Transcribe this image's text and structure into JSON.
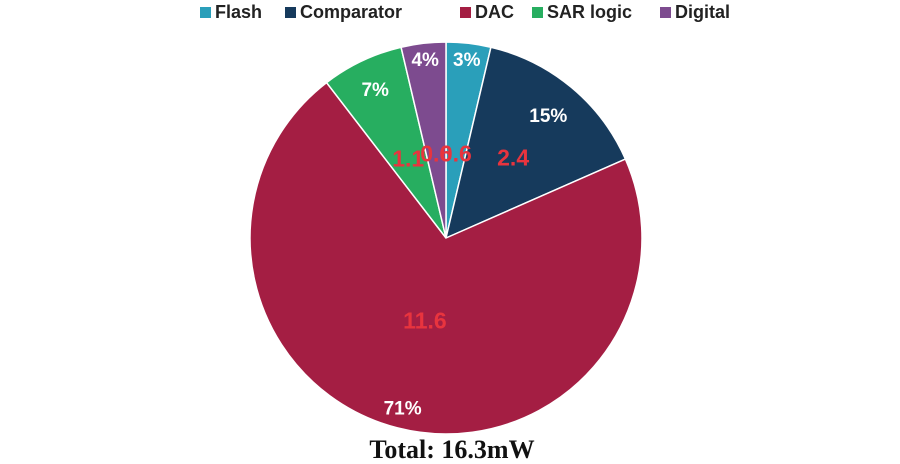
{
  "chart_data": {
    "type": "pie",
    "legend_position": "top",
    "slices": [
      {
        "name": "Flash",
        "value": 0.6,
        "percent_label": "3%",
        "value_label": "0.6",
        "color": "#2a9fba"
      },
      {
        "name": "Comparator",
        "value": 2.4,
        "percent_label": "15%",
        "value_label": "2.4",
        "color": "#163a5c"
      },
      {
        "name": "DAC",
        "value": 11.6,
        "percent_label": "71%",
        "value_label": "11.6",
        "color": "#a41e43"
      },
      {
        "name": "SAR logic",
        "value": 1.1,
        "percent_label": "7%",
        "value_label": "1.1",
        "color": "#27ae60"
      },
      {
        "name": "Digital",
        "value": 0.6,
        "percent_label": "4%",
        "value_label": "0.6",
        "color": "#7d4b8f"
      }
    ],
    "total_label": "Total: 16.3mW",
    "percent_label_color": "#ffffff",
    "value_label_color": "#e8343e"
  }
}
